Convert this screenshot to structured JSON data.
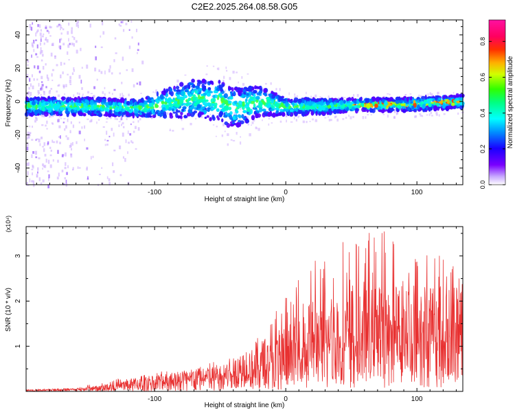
{
  "title": "C2E2.2025.264.08.58.G05",
  "colors": {
    "signal_core": "#00d9ff",
    "signal_body": "#5a00ff",
    "halo": "#c9a6ff",
    "snr_line": "#e83030",
    "axis": "#000000"
  },
  "chart_data": [
    {
      "type": "heatmap",
      "name": "spectrogram",
      "xlabel": "Height of straight line (km)",
      "ylabel": "Frequency (Hz)",
      "xlim": [
        -198,
        135
      ],
      "ylim": [
        -50,
        49
      ],
      "xticks": [
        -100,
        0,
        100
      ],
      "yticks": [
        -40,
        -20,
        0,
        20,
        40
      ],
      "colorbar": {
        "label": "Normalized spectral amplitude",
        "range": [
          0,
          0.92
        ],
        "ticks": [
          0.0,
          0.2,
          0.4,
          0.6,
          0.8
        ],
        "colormap": "rainbow (violet-blue-cyan-green-yellow-red-magenta)"
      },
      "band_center_hz": [
        {
          "x": -190,
          "y": -3
        },
        {
          "x": -150,
          "y": -3
        },
        {
          "x": -110,
          "y": -4
        },
        {
          "x": -90,
          "y": -1
        },
        {
          "x": -70,
          "y": 2
        },
        {
          "x": -50,
          "y": 0
        },
        {
          "x": -40,
          "y": -4
        },
        {
          "x": -20,
          "y": 0
        },
        {
          "x": 0,
          "y": -3
        },
        {
          "x": 30,
          "y": -3
        },
        {
          "x": 60,
          "y": -2
        },
        {
          "x": 90,
          "y": -2
        },
        {
          "x": 110,
          "y": -1
        },
        {
          "x": 135,
          "y": 0
        }
      ],
      "band_halfwidth_hz": [
        {
          "x": -190,
          "y": 4
        },
        {
          "x": -110,
          "y": 4
        },
        {
          "x": -80,
          "y": 8
        },
        {
          "x": -45,
          "y": 10
        },
        {
          "x": -20,
          "y": 7
        },
        {
          "x": 0,
          "y": 4
        },
        {
          "x": 50,
          "y": 3
        },
        {
          "x": 135,
          "y": 3
        }
      ]
    },
    {
      "type": "line",
      "name": "snr",
      "xlabel": "Height of straight line (km)",
      "ylabel": "SNR (10 * v/v)",
      "y_multiplier": "(x10⁴)",
      "xlim": [
        -198,
        135
      ],
      "ylim": [
        0,
        3.65
      ],
      "xticks": [
        -100,
        0,
        100
      ],
      "yticks": [
        1,
        2,
        3
      ],
      "series": [
        {
          "name": "SNR",
          "envelope_x": [
            -198,
            -160,
            -140,
            -120,
            -100,
            -80,
            -60,
            -50,
            -40,
            -30,
            -20,
            -10,
            0,
            10,
            20,
            30,
            40,
            50,
            70,
            90,
            110,
            125,
            135
          ],
          "envelope_y": [
            0.03,
            0.05,
            0.1,
            0.18,
            0.25,
            0.32,
            0.38,
            0.42,
            0.55,
            0.62,
            0.75,
            0.85,
            0.95,
            1.1,
            1.3,
            1.45,
            1.55,
            1.6,
            1.65,
            1.7,
            1.75,
            1.75,
            1.72
          ],
          "peak_y": [
            0.04,
            0.08,
            0.25,
            0.3,
            0.4,
            0.55,
            0.65,
            0.7,
            0.75,
            1.0,
            1.4,
            1.8,
            2.1,
            2.6,
            3.0,
            3.0,
            3.3,
            3.4,
            3.65,
            3.4,
            3.35,
            2.9,
            3.0
          ]
        }
      ]
    }
  ]
}
